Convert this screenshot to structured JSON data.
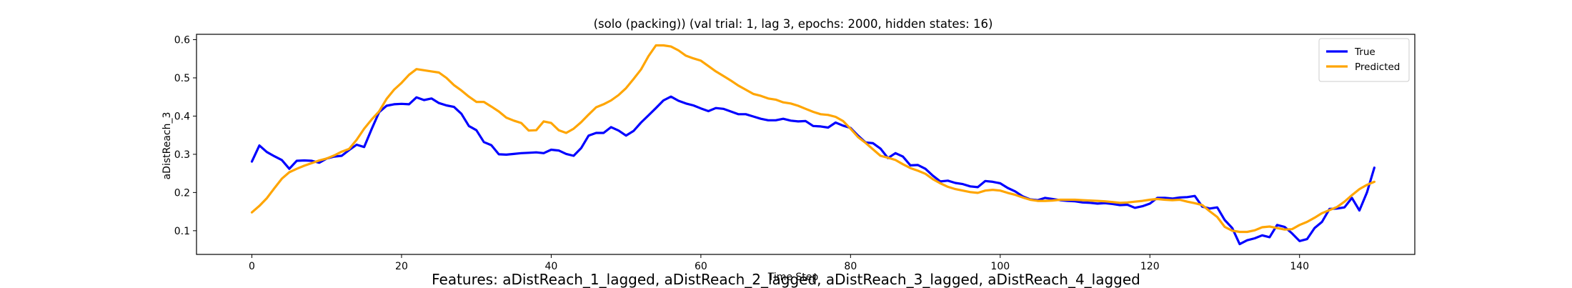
{
  "caption": "Features: aDistReach_1_lagged, aDistReach_2_lagged, aDistReach_3_lagged, aDistReach_4_lagged",
  "chart_data": {
    "type": "line",
    "title": "(solo (packing)) (val trial: 1, lag 3, epochs: 2000, hidden states: 16)",
    "xlabel": "Time Step",
    "ylabel": "aDistReach_3",
    "xlim": [
      -7.4,
      155.4
    ],
    "ylim": [
      0.038,
      0.614
    ],
    "xticks": [
      0,
      20,
      40,
      60,
      80,
      100,
      120,
      140
    ],
    "yticks": [
      0.1,
      0.2,
      0.3,
      0.4,
      0.5,
      0.6
    ],
    "grid": false,
    "legend_position": "top-right",
    "series": [
      {
        "name": "True",
        "color": "#0000ff",
        "values": [
          0.281,
          0.323,
          0.306,
          0.295,
          0.285,
          0.262,
          0.283,
          0.284,
          0.283,
          0.278,
          0.289,
          0.294,
          0.296,
          0.311,
          0.325,
          0.319,
          0.366,
          0.41,
          0.427,
          0.431,
          0.432,
          0.431,
          0.449,
          0.442,
          0.446,
          0.434,
          0.428,
          0.424,
          0.406,
          0.374,
          0.363,
          0.332,
          0.324,
          0.3,
          0.299,
          0.301,
          0.303,
          0.304,
          0.305,
          0.303,
          0.312,
          0.31,
          0.301,
          0.296,
          0.316,
          0.349,
          0.356,
          0.356,
          0.371,
          0.362,
          0.349,
          0.361,
          0.383,
          0.402,
          0.421,
          0.441,
          0.451,
          0.44,
          0.433,
          0.428,
          0.42,
          0.413,
          0.421,
          0.419,
          0.412,
          0.405,
          0.405,
          0.399,
          0.393,
          0.389,
          0.389,
          0.393,
          0.388,
          0.386,
          0.387,
          0.374,
          0.373,
          0.37,
          0.383,
          0.375,
          0.369,
          0.349,
          0.331,
          0.329,
          0.315,
          0.29,
          0.303,
          0.294,
          0.271,
          0.272,
          0.262,
          0.244,
          0.229,
          0.231,
          0.225,
          0.222,
          0.216,
          0.214,
          0.23,
          0.228,
          0.224,
          0.212,
          0.203,
          0.19,
          0.182,
          0.18,
          0.186,
          0.183,
          0.18,
          0.178,
          0.177,
          0.174,
          0.173,
          0.171,
          0.172,
          0.17,
          0.167,
          0.168,
          0.16,
          0.164,
          0.171,
          0.186,
          0.186,
          0.184,
          0.187,
          0.188,
          0.191,
          0.163,
          0.158,
          0.161,
          0.128,
          0.107,
          0.065,
          0.075,
          0.08,
          0.088,
          0.083,
          0.115,
          0.11,
          0.093,
          0.073,
          0.078,
          0.107,
          0.123,
          0.157,
          0.158,
          0.161,
          0.186,
          0.153,
          0.2,
          0.265
        ]
      },
      {
        "name": "Predicted",
        "color": "#ffa500",
        "values": [
          0.148,
          0.165,
          0.185,
          0.211,
          0.236,
          0.253,
          0.262,
          0.27,
          0.277,
          0.284,
          0.289,
          0.297,
          0.307,
          0.314,
          0.338,
          0.367,
          0.391,
          0.412,
          0.445,
          0.469,
          0.487,
          0.508,
          0.523,
          0.52,
          0.517,
          0.514,
          0.5,
          0.481,
          0.467,
          0.451,
          0.437,
          0.437,
          0.425,
          0.412,
          0.396,
          0.388,
          0.382,
          0.362,
          0.363,
          0.386,
          0.382,
          0.363,
          0.356,
          0.367,
          0.384,
          0.404,
          0.423,
          0.431,
          0.441,
          0.455,
          0.473,
          0.497,
          0.522,
          0.557,
          0.585,
          0.585,
          0.582,
          0.572,
          0.558,
          0.551,
          0.545,
          0.531,
          0.517,
          0.505,
          0.493,
          0.48,
          0.469,
          0.458,
          0.453,
          0.446,
          0.443,
          0.436,
          0.433,
          0.427,
          0.419,
          0.411,
          0.405,
          0.403,
          0.398,
          0.387,
          0.367,
          0.345,
          0.33,
          0.313,
          0.296,
          0.291,
          0.285,
          0.274,
          0.264,
          0.257,
          0.249,
          0.235,
          0.224,
          0.215,
          0.209,
          0.205,
          0.201,
          0.199,
          0.205,
          0.207,
          0.205,
          0.199,
          0.194,
          0.187,
          0.181,
          0.178,
          0.178,
          0.179,
          0.181,
          0.181,
          0.181,
          0.18,
          0.179,
          0.178,
          0.177,
          0.175,
          0.173,
          0.174,
          0.176,
          0.178,
          0.181,
          0.183,
          0.181,
          0.18,
          0.181,
          0.176,
          0.172,
          0.167,
          0.151,
          0.136,
          0.11,
          0.1,
          0.097,
          0.097,
          0.101,
          0.109,
          0.111,
          0.107,
          0.103,
          0.104,
          0.115,
          0.123,
          0.134,
          0.146,
          0.154,
          0.162,
          0.176,
          0.193,
          0.209,
          0.22,
          0.228
        ]
      }
    ]
  }
}
